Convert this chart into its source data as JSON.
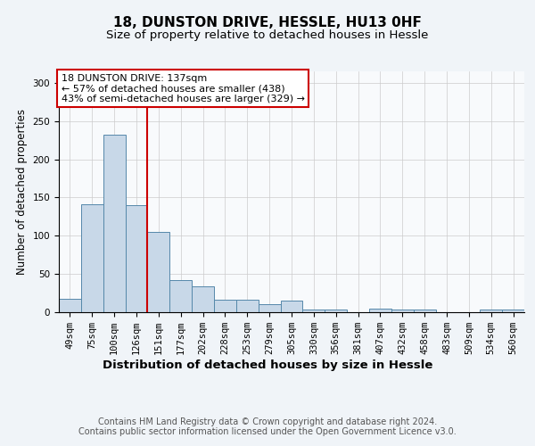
{
  "title1": "18, DUNSTON DRIVE, HESSLE, HU13 0HF",
  "title2": "Size of property relative to detached houses in Hessle",
  "xlabel": "Distribution of detached houses by size in Hessle",
  "ylabel": "Number of detached properties",
  "categories": [
    "49sqm",
    "75sqm",
    "100sqm",
    "126sqm",
    "151sqm",
    "177sqm",
    "202sqm",
    "228sqm",
    "253sqm",
    "279sqm",
    "305sqm",
    "330sqm",
    "356sqm",
    "381sqm",
    "407sqm",
    "432sqm",
    "458sqm",
    "483sqm",
    "509sqm",
    "534sqm",
    "560sqm"
  ],
  "values": [
    18,
    141,
    232,
    140,
    105,
    42,
    34,
    16,
    16,
    10,
    15,
    4,
    3,
    0,
    5,
    4,
    3,
    0,
    0,
    3,
    3
  ],
  "bar_color": "#c8d8e8",
  "bar_edge_color": "#5588aa",
  "vline_x": 3.5,
  "vline_color": "#cc0000",
  "annotation_box_text": "18 DUNSTON DRIVE: 137sqm\n← 57% of detached houses are smaller (438)\n43% of semi-detached houses are larger (329) →",
  "annotation_box_color": "#ffffff",
  "annotation_box_edge_color": "#cc0000",
  "ylim": [
    0,
    315
  ],
  "footer_text": "Contains HM Land Registry data © Crown copyright and database right 2024.\nContains public sector information licensed under the Open Government Licence v3.0.",
  "bg_color": "#f0f4f8",
  "plot_bg_color": "#f8fafc",
  "title1_fontsize": 11,
  "title2_fontsize": 9.5,
  "xlabel_fontsize": 9.5,
  "ylabel_fontsize": 8.5,
  "tick_fontsize": 7.5,
  "footer_fontsize": 7,
  "annotation_fontsize": 8
}
